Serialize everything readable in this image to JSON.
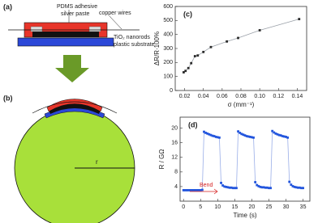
{
  "figure_a": {
    "label": "(a)",
    "pdms": "PDMS adhesive",
    "silver": "silver paste",
    "copper": "copper wires",
    "nanorods": "TiO₂ nanorods",
    "substrate": "plastic substrate"
  },
  "figure_b": {
    "label": "(b)",
    "radius": "r"
  },
  "chart_data": [
    {
      "type": "line",
      "title": "(c)",
      "xlabel": "σ (mm⁻¹)",
      "ylabel": "ΔR/R·100%",
      "color": "#2a2a2a",
      "line_color": "#9aa0a8",
      "x": [
        0.019,
        0.021,
        0.024,
        0.027,
        0.031,
        0.034,
        0.04,
        0.048,
        0.065,
        0.077,
        0.1,
        0.142
      ],
      "values": [
        130,
        140,
        160,
        195,
        245,
        250,
        275,
        310,
        350,
        375,
        430,
        510
      ],
      "xlim": [
        0.01,
        0.15
      ],
      "ylim": [
        0,
        600
      ],
      "xticks": [
        0.02,
        0.04,
        0.06,
        0.08,
        {
          "value": 0.1,
          "label": "0.10"
        },
        0.12,
        0.14
      ],
      "yticks": [
        0,
        100,
        200,
        300,
        400,
        500,
        600
      ]
    },
    {
      "type": "line",
      "title": "(d)",
      "xlabel": "Time (s)",
      "ylabel": "R / GΩ",
      "color": "#2255dd",
      "line_color": "#9aaee8",
      "annotation": "Bend",
      "x": [
        0,
        0.5,
        1,
        1.5,
        2,
        2.5,
        3,
        3.5,
        4,
        4.5,
        5,
        5.5,
        6,
        6.5,
        7,
        7.5,
        8,
        8.5,
        9,
        9.5,
        10,
        10.5,
        11,
        11.5,
        12,
        12.5,
        13,
        13.5,
        14,
        14.5,
        15,
        15.5,
        16,
        16.5,
        17,
        17.5,
        18,
        18.5,
        19,
        19.5,
        20,
        20.5,
        21,
        21.5,
        22,
        22.5,
        23,
        23.5,
        24,
        24.5,
        25,
        25.5,
        26,
        26.5,
        27,
        27.5,
        28,
        28.5,
        29,
        29.5,
        30,
        30.5,
        31,
        31.5,
        32,
        32.5,
        33,
        33.5,
        34,
        34.5,
        35
      ],
      "values": [
        3.0,
        3.0,
        3.0,
        3.0,
        3.0,
        3.0,
        3.0,
        3.0,
        3.0,
        3.0,
        3.0,
        3.1,
        19.0,
        18.7,
        18.5,
        18.3,
        18.1,
        17.9,
        17.8,
        17.6,
        17.5,
        17.4,
        5.0,
        4.3,
        4.0,
        3.9,
        3.8,
        3.7,
        3.7,
        3.6,
        3.6,
        3.6,
        19.1,
        18.7,
        18.4,
        18.2,
        18.0,
        17.8,
        17.7,
        17.6,
        17.5,
        17.4,
        5.2,
        4.4,
        4.1,
        3.9,
        3.8,
        3.8,
        3.7,
        3.7,
        3.6,
        3.6,
        19.2,
        18.8,
        18.5,
        18.3,
        18.1,
        18.0,
        17.8,
        17.7,
        17.6,
        17.4,
        5.3,
        4.5,
        4.1,
        3.9,
        3.8,
        3.7,
        3.7,
        3.6,
        3.6
      ],
      "xlim": [
        -1,
        37
      ],
      "ylim": [
        0,
        23
      ],
      "xticks": [
        0,
        5,
        10,
        15,
        20,
        25,
        30,
        35
      ],
      "yticks": [
        4,
        8,
        12,
        16,
        20
      ]
    }
  ]
}
